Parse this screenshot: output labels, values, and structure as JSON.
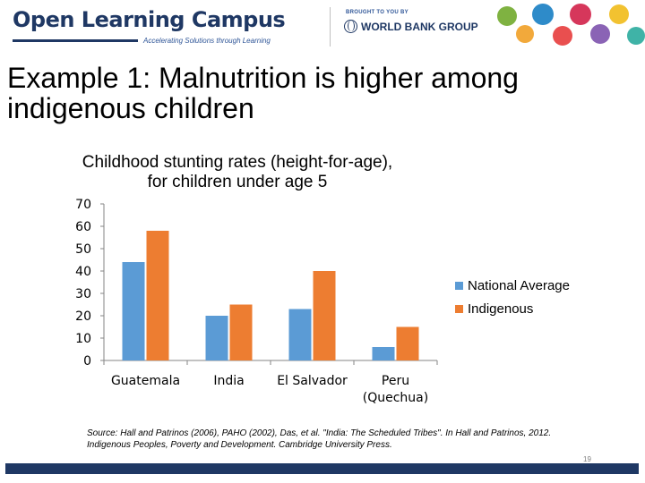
{
  "header": {
    "brand": "Open Learning Campus",
    "tagline": "Accelerating Solutions through Learning",
    "brought_to_you_by": "BROUGHT TO YOU BY",
    "partner": "WORLD BANK GROUP"
  },
  "slide": {
    "title": "Example 1: Malnutrition is higher among indigenous children",
    "source": "Source: Hall and Patrinos (2006), PAHO (2002), Das, et al. \"India: The Scheduled Tribes\". In Hall and Patrinos, 2012. Indigenous Peoples, Poverty and Development. Cambridge University Press.",
    "page_number": "19"
  },
  "colors": {
    "national_average": "#5b9bd5",
    "indigenous": "#ed7d31",
    "brand_navy": "#1f3864"
  },
  "chart_data": {
    "type": "bar",
    "title": "Childhood stunting rates (height-for-age), for children under age 5",
    "categories": [
      "Guatemala",
      "India",
      "El Salvador",
      "Peru (Quechua)"
    ],
    "series": [
      {
        "name": "National Average",
        "values": [
          44,
          20,
          23,
          6
        ]
      },
      {
        "name": "Indigenous",
        "values": [
          58,
          25,
          40,
          15
        ]
      }
    ],
    "yticks": [
      0,
      10,
      20,
      30,
      40,
      50,
      60,
      70
    ],
    "ylim": [
      0,
      70
    ],
    "xlabel": "",
    "ylabel": "",
    "grid": false,
    "legend_position": "right"
  }
}
